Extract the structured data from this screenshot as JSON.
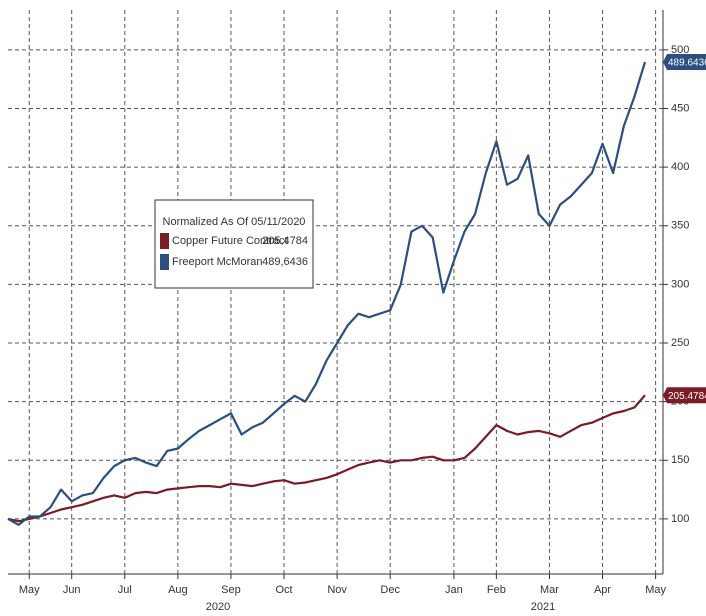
{
  "chart_data": {
    "type": "line",
    "legend_title": "Normalized As Of 05/11/2020",
    "categories": [
      null,
      null,
      "May",
      null,
      null,
      null,
      "Jun",
      null,
      null,
      null,
      null,
      "Jul",
      null,
      null,
      null,
      null,
      "Aug",
      null,
      null,
      null,
      null,
      "Sep",
      null,
      null,
      null,
      null,
      "Oct",
      null,
      null,
      null,
      null,
      "Nov",
      null,
      null,
      null,
      null,
      "Dec",
      null,
      null,
      null,
      null,
      null,
      "Jan",
      null,
      null,
      null,
      "Feb",
      null,
      null,
      null,
      null,
      "Mar",
      null,
      null,
      null,
      null,
      "Apr",
      null,
      null,
      null,
      null,
      "May"
    ],
    "year_labels": [
      "2020",
      "2021"
    ],
    "series": [
      {
        "name": "Copper Future Contract",
        "color": "#7b1c25",
        "legend_label": "205,4784",
        "values": [
          100,
          98,
          100,
          102,
          105,
          108,
          110,
          112,
          115,
          118,
          120,
          118,
          122,
          123,
          122,
          125,
          126,
          127,
          128,
          128,
          127,
          130,
          129,
          128,
          130,
          132,
          133,
          130,
          131,
          133,
          135,
          138,
          142,
          146,
          148,
          150,
          148,
          150,
          150,
          152,
          153,
          150,
          150,
          152,
          160,
          170,
          180,
          175,
          172,
          174,
          175,
          173,
          170,
          175,
          180,
          182,
          186,
          190,
          192,
          195,
          205.4784,
          null
        ]
      },
      {
        "name": "Freeport McMoran",
        "color": "#2b4f7e",
        "legend_label": "489,6436",
        "values": [
          100,
          95,
          102,
          102,
          110,
          125,
          115,
          120,
          122,
          135,
          145,
          150,
          152,
          148,
          145,
          158,
          160,
          168,
          175,
          180,
          185,
          190,
          172,
          178,
          182,
          190,
          198,
          205,
          200,
          215,
          235,
          250,
          265,
          275,
          272,
          275,
          278,
          300,
          345,
          350,
          340,
          293,
          320,
          345,
          360,
          395,
          422,
          385,
          390,
          410,
          360,
          350,
          368,
          375,
          385,
          395,
          420,
          395,
          435,
          460,
          489.6436,
          null
        ]
      }
    ],
    "ylim": [
      53,
      534
    ],
    "yticks": [
      100,
      150,
      200,
      250,
      300,
      350,
      400,
      450,
      500
    ],
    "grid": true
  }
}
